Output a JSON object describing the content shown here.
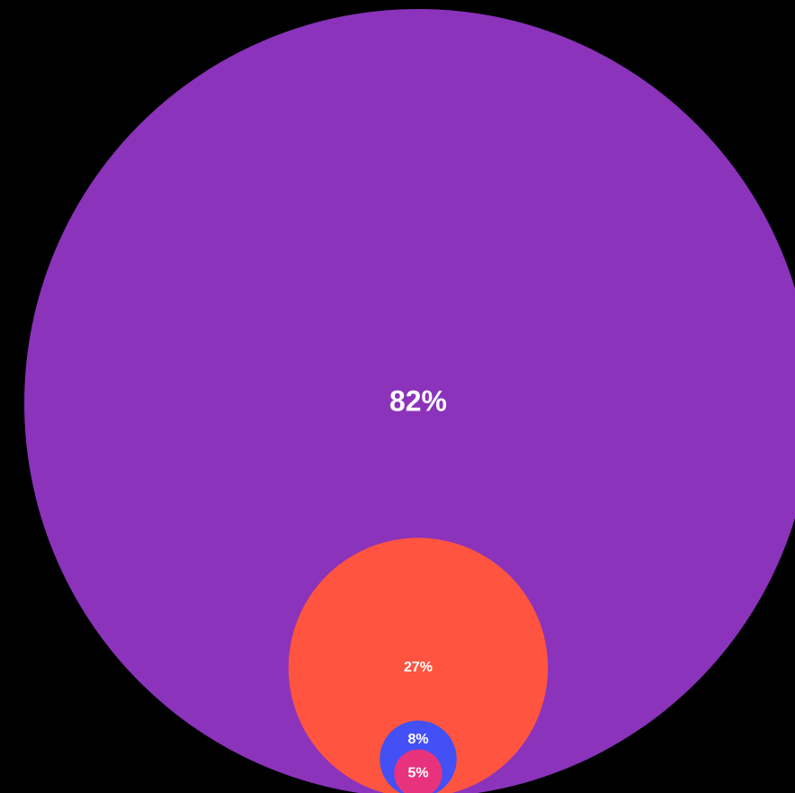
{
  "chart_data": {
    "type": "nested-circle",
    "values": [
      82,
      27,
      8,
      5
    ],
    "value_labels": [
      "82%",
      "27%",
      "8%",
      "5%"
    ],
    "colors": [
      "#8b33bb",
      "#ff5540",
      "#4250f5",
      "#e8337c"
    ]
  }
}
